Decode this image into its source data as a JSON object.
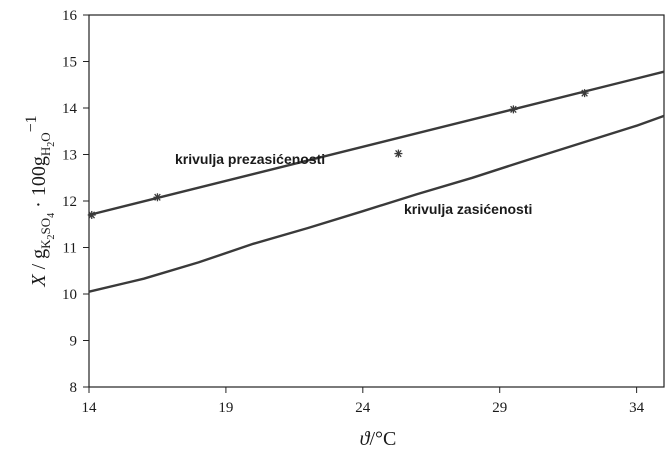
{
  "chart_data": {
    "type": "line",
    "xlabel": "ϑ/°C",
    "ylabel": "X / gK2SO4 · 100gH2O−1",
    "xlim": [
      14,
      35
    ],
    "ylim": [
      8,
      16
    ],
    "xticks": [
      14,
      19,
      24,
      29,
      34
    ],
    "yticks": [
      8,
      9,
      10,
      11,
      12,
      13,
      14,
      15,
      16
    ],
    "grid": false,
    "series": [
      {
        "name": "krivulja prezasićenosti",
        "style": "line",
        "color": "#3a3a3a",
        "x": [
          14,
          35
        ],
        "y": [
          11.7,
          14.78
        ]
      },
      {
        "name": "krivulja zasićenosti",
        "style": "line",
        "color": "#3a3a3a",
        "x": [
          14,
          16,
          18,
          20,
          22,
          24,
          26,
          28,
          30,
          32,
          34,
          35
        ],
        "y": [
          10.05,
          10.33,
          10.68,
          11.08,
          11.42,
          11.78,
          12.15,
          12.5,
          12.88,
          13.25,
          13.62,
          13.83
        ]
      },
      {
        "name": "",
        "style": "markers",
        "marker": "asterisk",
        "color": "#3a3a3a",
        "x": [
          14.1,
          16.5,
          25.3,
          29.5,
          32.1
        ],
        "y": [
          11.7,
          12.08,
          13.02,
          13.97,
          14.32
        ]
      }
    ]
  }
}
